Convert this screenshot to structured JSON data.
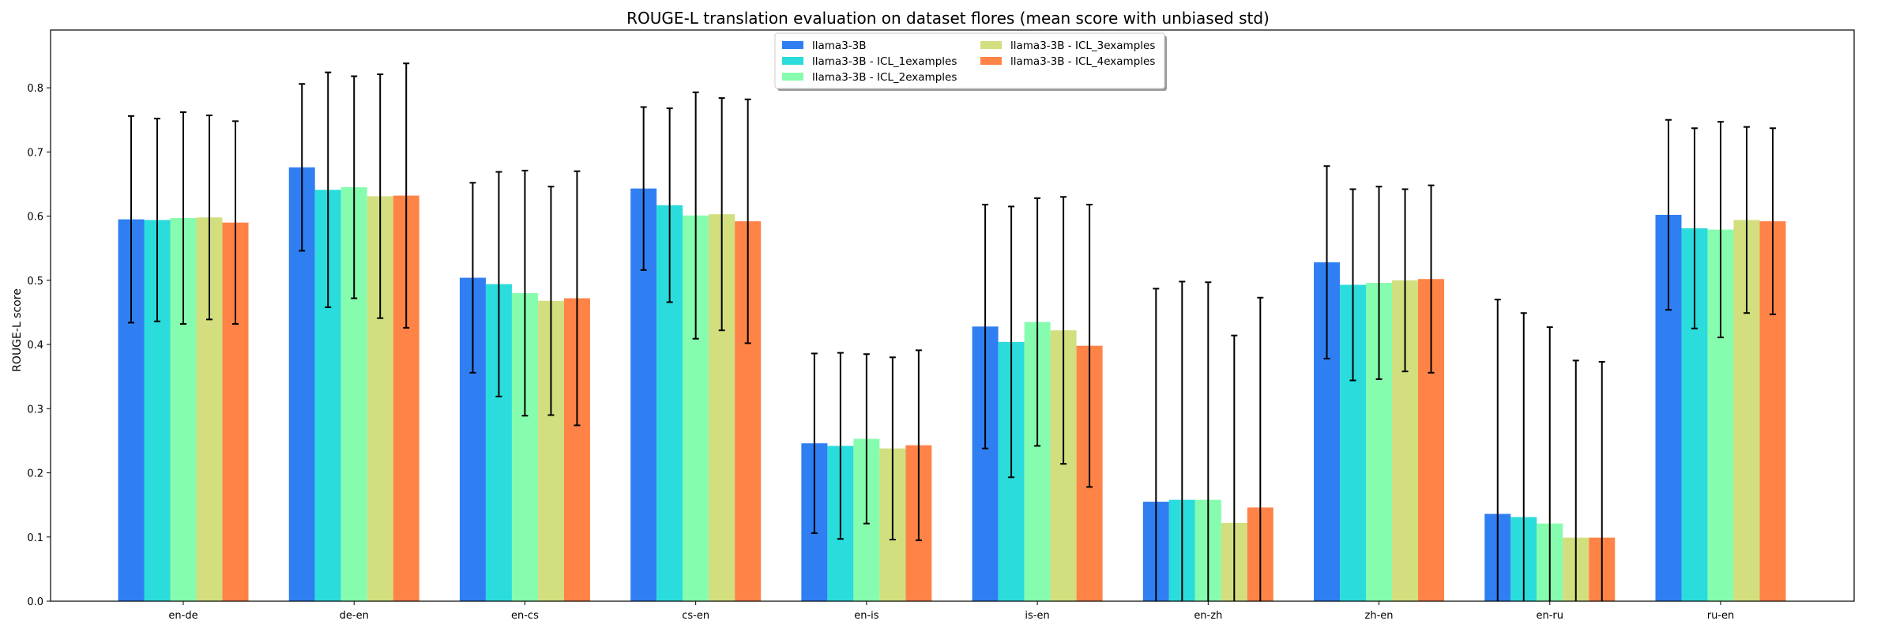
{
  "chart_data": {
    "type": "bar",
    "title": "ROUGE-L translation evaluation on dataset flores (mean score with unbiased std)",
    "xlabel": "",
    "ylabel": "ROUGE-L score",
    "ylim": [
      0,
      0.89
    ],
    "yticks": [
      "0.0",
      "0.1",
      "0.2",
      "0.3",
      "0.4",
      "0.5",
      "0.6",
      "0.7",
      "0.8"
    ],
    "categories": [
      "en-de",
      "de-en",
      "en-cs",
      "cs-en",
      "en-is",
      "is-en",
      "en-zh",
      "zh-en",
      "en-ru",
      "ru-en"
    ],
    "grid": false,
    "legend_position": "top-center",
    "series": [
      {
        "name": "llama3-3B",
        "color": "#2f7ff3",
        "values": [
          0.595,
          0.676,
          0.504,
          0.643,
          0.246,
          0.428,
          0.155,
          0.528,
          0.136,
          0.602
        ],
        "std": [
          0.161,
          0.13,
          0.148,
          0.127,
          0.14,
          0.19,
          0.332,
          0.15,
          0.334,
          0.148
        ]
      },
      {
        "name": "llama3-3B - ICL_1examples",
        "color": "#2adcdc",
        "values": [
          0.594,
          0.641,
          0.494,
          0.617,
          0.242,
          0.404,
          0.158,
          0.493,
          0.131,
          0.581
        ],
        "std": [
          0.158,
          0.183,
          0.175,
          0.151,
          0.145,
          0.211,
          0.34,
          0.149,
          0.318,
          0.156
        ]
      },
      {
        "name": "llama3-3B - ICL_2examples",
        "color": "#86fdae",
        "values": [
          0.597,
          0.645,
          0.48,
          0.601,
          0.253,
          0.435,
          0.158,
          0.496,
          0.121,
          0.579
        ],
        "std": [
          0.165,
          0.173,
          0.191,
          0.192,
          0.132,
          0.193,
          0.339,
          0.15,
          0.306,
          0.168
        ]
      },
      {
        "name": "llama3-3B - ICL_3examples",
        "color": "#d3de7f",
        "values": [
          0.598,
          0.631,
          0.468,
          0.603,
          0.238,
          0.422,
          0.122,
          0.5,
          0.099,
          0.594
        ],
        "std": [
          0.159,
          0.19,
          0.178,
          0.181,
          0.142,
          0.208,
          0.292,
          0.142,
          0.276,
          0.145
        ]
      },
      {
        "name": "llama3-3B - ICL_4examples",
        "color": "#ff8347",
        "values": [
          0.59,
          0.632,
          0.472,
          0.592,
          0.243,
          0.398,
          0.146,
          0.502,
          0.099,
          0.592
        ],
        "std": [
          0.158,
          0.206,
          0.198,
          0.19,
          0.148,
          0.22,
          0.327,
          0.146,
          0.274,
          0.145
        ]
      }
    ]
  }
}
